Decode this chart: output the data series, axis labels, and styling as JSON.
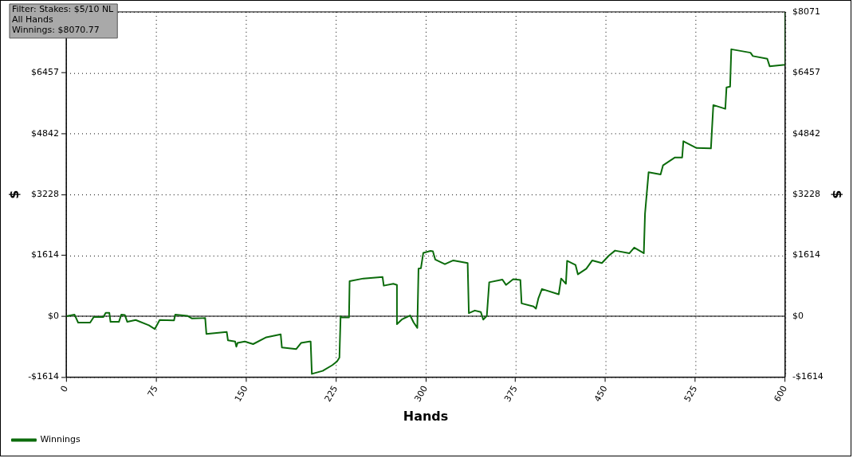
{
  "chart_data": {
    "type": "line",
    "xlabel": "Hands",
    "ylabel": "$",
    "y2label": "$",
    "annotations": [
      "Filter: Stakes: $5/10 NL",
      "All Hands",
      "Winnings: $8070.77"
    ],
    "xlim": [
      0,
      600
    ],
    "xticks": [
      0,
      75,
      150,
      225,
      300,
      375,
      450,
      525,
      600
    ],
    "ylim": [
      -1614,
      8071
    ],
    "yticks": [
      {
        "value": -1614,
        "label": "-$1614"
      },
      {
        "value": 0,
        "label": "$0"
      },
      {
        "value": 1614,
        "label": "$1614"
      },
      {
        "value": 3228,
        "label": "$3228"
      },
      {
        "value": 4842,
        "label": "$4842"
      },
      {
        "value": 6457,
        "label": "$6457"
      },
      {
        "value": 8071,
        "label": null
      }
    ],
    "y2lim": [
      -1614,
      8071
    ],
    "y2ticks": [
      {
        "value": -1614,
        "label": "-$1614"
      },
      {
        "value": 0,
        "label": "$0"
      },
      {
        "value": 1614,
        "label": "$1614"
      },
      {
        "value": 3228,
        "label": "$3228"
      },
      {
        "value": 4842,
        "label": "$4842"
      },
      {
        "value": 6457,
        "label": "$6457"
      },
      {
        "value": 8071,
        "label": "$8071"
      }
    ],
    "grid": true,
    "legend": "bottom left",
    "marker": "none",
    "line_style": "solid",
    "ref_lines": [
      {
        "axis": "y",
        "value": 0,
        "color": "#000000"
      }
    ],
    "series": [
      {
        "name": "Winnings",
        "color": "#0b6b0b",
        "x": [
          0,
          7,
          10,
          20,
          23,
          31,
          33,
          36,
          37,
          44,
          46,
          49,
          51,
          58,
          69,
          74,
          78,
          90,
          91,
          101,
          105,
          116,
          117,
          134,
          135,
          141,
          142,
          143,
          149,
          156,
          167,
          179,
          180,
          192,
          196,
          203,
          204,
          205,
          214,
          222,
          226,
          228,
          229,
          230,
          236,
          236.5,
          248,
          264,
          265,
          273,
          276,
          276,
          280,
          287,
          290,
          293,
          294,
          296,
          298,
          304,
          306,
          308,
          316,
          323,
          335,
          336,
          341,
          346,
          348,
          351,
          353,
          364,
          367,
          373,
          379,
          380,
          390,
          392,
          394,
          397,
          411,
          413,
          417,
          418,
          425,
          427,
          434,
          439,
          447,
          453,
          458,
          470,
          474,
          482,
          483,
          486,
          496,
          498,
          508,
          514,
          515,
          526,
          538,
          540,
          550,
          551,
          554,
          555,
          571,
          573,
          585,
          587,
          600,
          600
        ],
        "values": [
          0,
          40,
          -170,
          -170,
          -20,
          -20,
          90,
          90,
          -150,
          -150,
          40,
          30,
          -150,
          -100,
          -240,
          -340,
          -100,
          -110,
          40,
          10,
          -60,
          -50,
          -470,
          -420,
          -640,
          -670,
          -810,
          -710,
          -670,
          -740,
          -560,
          -480,
          -830,
          -870,
          -710,
          -670,
          -670,
          -1530,
          -1450,
          -1300,
          -1200,
          -1100,
          0,
          -30,
          -30,
          930,
          1000,
          1040,
          810,
          860,
          830,
          -210,
          -90,
          20,
          -170,
          -310,
          1260,
          1270,
          1680,
          1730,
          1720,
          1500,
          1380,
          1480,
          1410,
          80,
          150,
          110,
          -90,
          10,
          900,
          970,
          830,
          980,
          960,
          340,
          260,
          200,
          470,
          720,
          580,
          1000,
          860,
          1470,
          1360,
          1110,
          1260,
          1480,
          1410,
          1610,
          1740,
          1670,
          1820,
          1670,
          2720,
          3820,
          3760,
          4000,
          4210,
          4210,
          4640,
          4460,
          4450,
          5600,
          5500,
          6070,
          6090,
          7080,
          6990,
          6900,
          6830,
          6630,
          6670,
          8070
        ]
      }
    ]
  }
}
